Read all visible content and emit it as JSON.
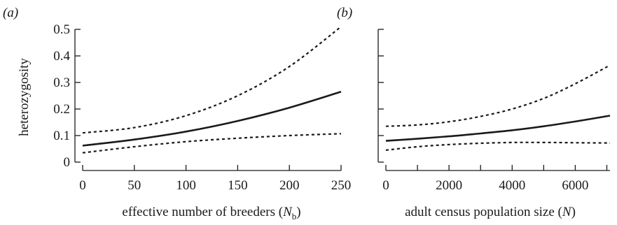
{
  "chart_data": [
    {
      "type": "line",
      "panel_label": "(a)",
      "xlabel_main": "effective number of breeders (",
      "xlabel_var": "N",
      "xlabel_sub": "b",
      "xlabel_close": ")",
      "ylabel": "heterozygosity",
      "xlim": [
        0,
        250
      ],
      "ylim": [
        0,
        0.5
      ],
      "x_ticks": [
        "0",
        "50",
        "100",
        "150",
        "200",
        "250"
      ],
      "x_tick_values": [
        0,
        50,
        100,
        150,
        200,
        250
      ],
      "y_ticks": [
        "0",
        "0.1",
        "0.2",
        "0.3",
        "0.4",
        "0.5"
      ],
      "y_tick_values": [
        0,
        0.1,
        0.2,
        0.3,
        0.4,
        0.5
      ],
      "series": [
        {
          "style": "dashed",
          "x": [
            0,
            50,
            100,
            150,
            200,
            250
          ],
          "values": [
            0.035,
            0.058,
            0.077,
            0.09,
            0.1,
            0.107
          ]
        },
        {
          "style": "solid",
          "x": [
            0,
            50,
            100,
            150,
            200,
            250
          ],
          "values": [
            0.062,
            0.085,
            0.115,
            0.155,
            0.205,
            0.265
          ]
        },
        {
          "style": "dashed",
          "x": [
            0,
            50,
            100,
            150,
            200,
            250
          ],
          "values": [
            0.11,
            0.13,
            0.175,
            0.25,
            0.36,
            0.51
          ]
        }
      ]
    },
    {
      "type": "line",
      "panel_label": "(b)",
      "xlabel_main": "adult census population size (",
      "xlabel_var": "N",
      "xlabel_sub": "",
      "xlabel_close": ")",
      "ylabel": "",
      "xlim": [
        0,
        7100
      ],
      "ylim": [
        0,
        0.5
      ],
      "x_ticks": [
        "0",
        "2000",
        "4000",
        "6000"
      ],
      "x_tick_values": [
        0,
        2000,
        4000,
        6000
      ],
      "x_minor_tick_values": [
        1000,
        3000,
        5000,
        7000
      ],
      "y_tick_values": [
        0,
        0.1,
        0.2,
        0.3,
        0.4,
        0.5
      ],
      "series": [
        {
          "style": "dashed",
          "x": [
            0,
            1000,
            2000,
            3000,
            4000,
            5000,
            6000,
            7100
          ],
          "values": [
            0.045,
            0.058,
            0.066,
            0.071,
            0.074,
            0.074,
            0.073,
            0.072
          ]
        },
        {
          "style": "solid",
          "x": [
            0,
            1000,
            2000,
            3000,
            4000,
            5000,
            6000,
            7100
          ],
          "values": [
            0.08,
            0.088,
            0.097,
            0.108,
            0.12,
            0.135,
            0.153,
            0.175
          ]
        },
        {
          "style": "dashed",
          "x": [
            0,
            1000,
            2000,
            3000,
            4000,
            5000,
            6000,
            7100
          ],
          "values": [
            0.135,
            0.14,
            0.152,
            0.172,
            0.2,
            0.24,
            0.295,
            0.365
          ]
        }
      ]
    }
  ]
}
